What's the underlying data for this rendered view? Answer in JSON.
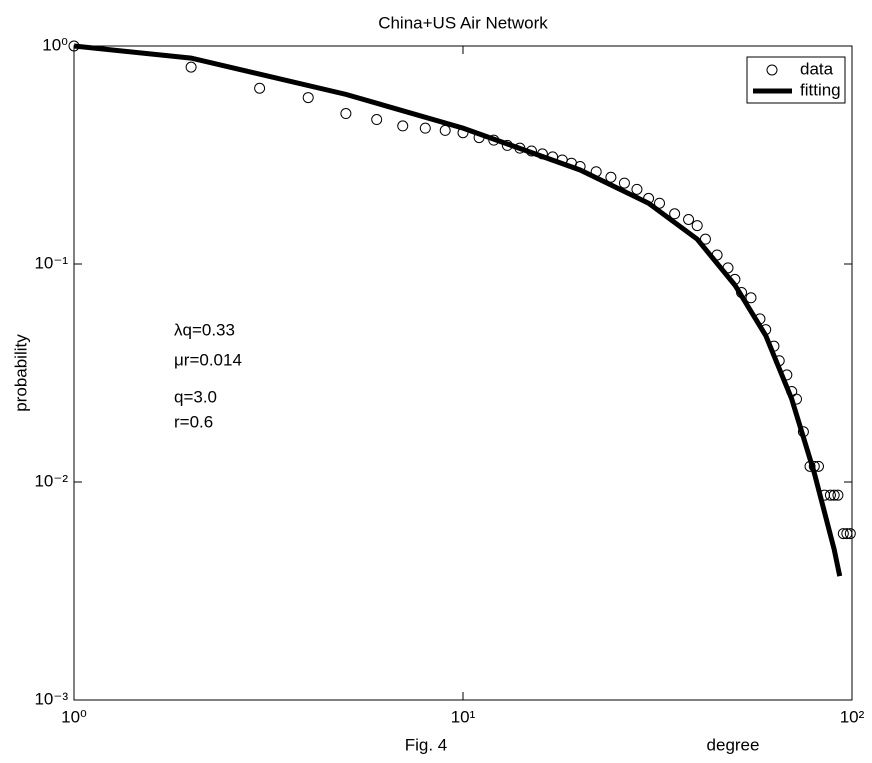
{
  "chart_data": {
    "type": "loglog",
    "title": "China+US Air Network",
    "xlabel": "degree",
    "ylabel": "probability",
    "caption": "Fig. 4",
    "annotations": [
      "λq=0.33",
      "μr=0.014",
      "q=3.0",
      "r=0.6"
    ],
    "xscale": "log",
    "yscale": "log",
    "xlim": [
      1,
      100
    ],
    "ylim": [
      0.001,
      1
    ],
    "xticks": [
      {
        "value": 1,
        "label": "10⁰"
      },
      {
        "value": 10,
        "label": "10¹"
      },
      {
        "value": 100,
        "label": "10²"
      }
    ],
    "yticks": [
      {
        "value": 0.001,
        "label": "10⁻³"
      },
      {
        "value": 0.01,
        "label": "10⁻²"
      },
      {
        "value": 0.1,
        "label": "10⁻¹"
      },
      {
        "value": 1,
        "label": "10⁰"
      }
    ],
    "legend": "upper right",
    "series": [
      {
        "name": "data",
        "style": "circle",
        "color": "#000000",
        "x": [
          1,
          2,
          3,
          4,
          5,
          6,
          7,
          8,
          9,
          10,
          11,
          12,
          13,
          14,
          15,
          16,
          17,
          18,
          19,
          20,
          22,
          24,
          26,
          28,
          30,
          32,
          35,
          38,
          40,
          42,
          45,
          48,
          50,
          52,
          55,
          58,
          60,
          63,
          65,
          68,
          70,
          72,
          75,
          78,
          80,
          82,
          85,
          88,
          90,
          92,
          95,
          97,
          99
        ],
        "values": [
          1.0,
          0.8,
          0.64,
          0.58,
          0.49,
          0.46,
          0.43,
          0.42,
          0.41,
          0.4,
          0.38,
          0.37,
          0.35,
          0.34,
          0.33,
          0.32,
          0.31,
          0.3,
          0.29,
          0.28,
          0.265,
          0.25,
          0.235,
          0.22,
          0.2,
          0.19,
          0.17,
          0.16,
          0.15,
          0.13,
          0.11,
          0.096,
          0.085,
          0.074,
          0.07,
          0.056,
          0.05,
          0.042,
          0.036,
          0.031,
          0.026,
          0.024,
          0.017,
          0.0118,
          0.0118,
          0.0118,
          0.0087,
          0.0087,
          0.0087,
          0.0087,
          0.0058,
          0.0058,
          0.0058
        ]
      },
      {
        "name": "fitting",
        "style": "line",
        "color": "#000000",
        "x": [
          1,
          2,
          5,
          10,
          20,
          30,
          40,
          50,
          60,
          70,
          80,
          90,
          93
        ],
        "values": [
          1.0,
          0.88,
          0.6,
          0.42,
          0.27,
          0.19,
          0.13,
          0.08,
          0.047,
          0.024,
          0.011,
          0.0049,
          0.0037
        ]
      }
    ]
  }
}
